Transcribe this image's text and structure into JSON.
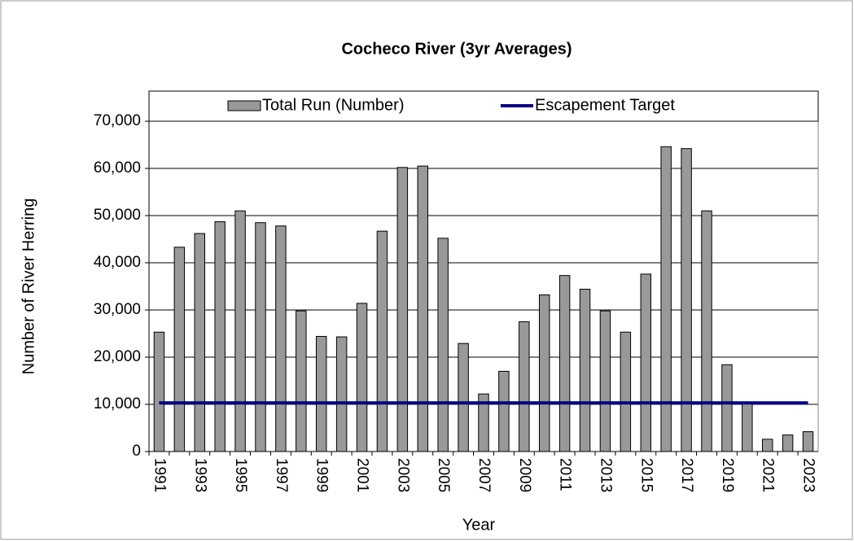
{
  "chart_data": {
    "type": "bar",
    "title": "Cocheco River (3yr Averages)",
    "x_label": "Year",
    "y_label": "Number of River Herring",
    "categories": [
      "1991",
      null,
      "1993",
      null,
      "1995",
      null,
      "1997",
      null,
      "1999",
      null,
      "2001",
      null,
      "2003",
      null,
      "2005",
      null,
      "2007",
      null,
      "2009",
      null,
      "2011",
      null,
      "2013",
      null,
      "2015",
      null,
      "2017",
      null,
      "2019",
      null,
      "2021",
      null,
      "2023"
    ],
    "series": [
      {
        "name": "Total Run (Number)",
        "type": "bar",
        "color": "#999999",
        "values": [
          25300,
          43300,
          46200,
          48700,
          51000,
          48500,
          47800,
          29800,
          24400,
          24300,
          31400,
          46700,
          60200,
          60500,
          45200,
          22900,
          12200,
          17000,
          27500,
          33200,
          37300,
          34400,
          29800,
          25300,
          37600,
          64600,
          64200,
          51000,
          18400,
          10200,
          2600,
          3500,
          4200
        ]
      },
      {
        "name": "Escapement Target",
        "type": "line",
        "color": "#000080",
        "values": [
          10300,
          10300,
          10300,
          10300,
          10300,
          10300,
          10300,
          10300,
          10300,
          10300,
          10300,
          10300,
          10300,
          10300,
          10300,
          10300,
          10300,
          10300,
          10300,
          10300,
          10300,
          10300,
          10300,
          10300,
          10300,
          10300,
          10300,
          10300,
          10300,
          10300,
          10300,
          10300,
          10300
        ]
      }
    ],
    "ylim": [
      0,
      70000
    ],
    "yticks": [
      0,
      {
        "value": 10000,
        "label": "10,000"
      },
      {
        "value": 20000,
        "label": "20,000"
      },
      {
        "value": 30000,
        "label": "30,000"
      },
      {
        "value": 40000,
        "label": "40,000"
      },
      {
        "value": 50000,
        "label": "50,000"
      },
      {
        "value": 60000,
        "label": "60,000"
      },
      {
        "value": 70000,
        "label": "70,000"
      }
    ],
    "grid": true,
    "legend": "top"
  }
}
